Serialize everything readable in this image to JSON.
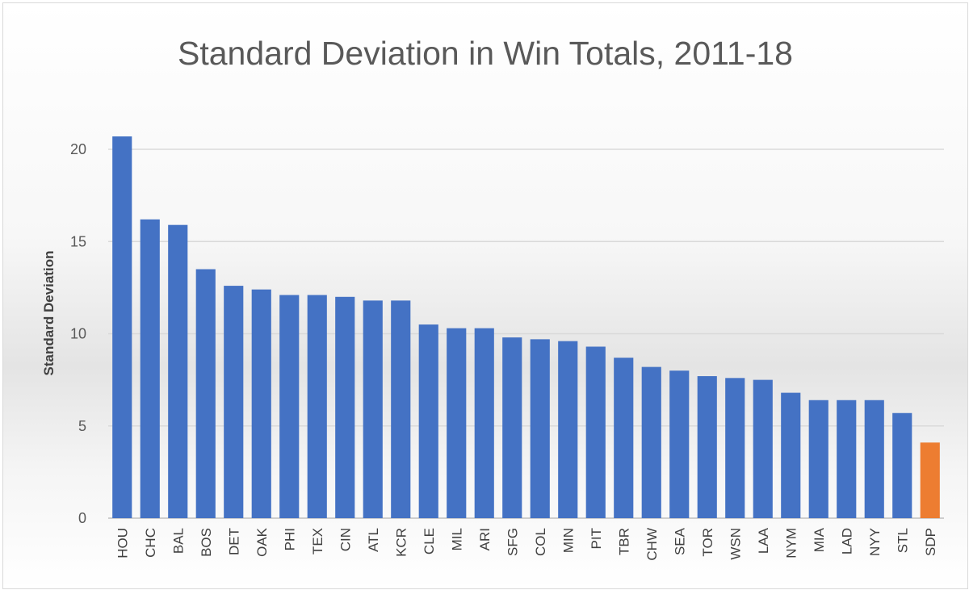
{
  "chart_data": {
    "type": "bar",
    "title": "Standard Deviation in Win Totals, 2011-18",
    "xlabel": "",
    "ylabel": "Standard Deviation",
    "ylim": [
      0,
      20
    ],
    "yticks": [
      "0",
      "5",
      "10",
      "15",
      "20"
    ],
    "grid": true,
    "categories": [
      "HOU",
      "CHC",
      "BAL",
      "BOS",
      "DET",
      "OAK",
      "PHI",
      "TEX",
      "CIN",
      "ATL",
      "KCR",
      "CLE",
      "MIL",
      "ARI",
      "SFG",
      "COL",
      "MIN",
      "PIT",
      "TBR",
      "CHW",
      "SEA",
      "TOR",
      "WSN",
      "LAA",
      "NYM",
      "MIA",
      "LAD",
      "NYY",
      "STL",
      "SDP"
    ],
    "values": [
      20.7,
      16.2,
      15.9,
      13.5,
      12.6,
      12.4,
      12.1,
      12.1,
      12.0,
      11.8,
      11.8,
      10.5,
      10.3,
      10.3,
      9.8,
      9.7,
      9.6,
      9.3,
      8.7,
      8.2,
      8.0,
      7.7,
      7.6,
      7.5,
      6.8,
      6.4,
      6.4,
      6.4,
      5.7,
      4.1
    ],
    "colors": {
      "default": "#4472C4",
      "highlight": "#ED7D31"
    },
    "highlight_category": "SDP"
  }
}
